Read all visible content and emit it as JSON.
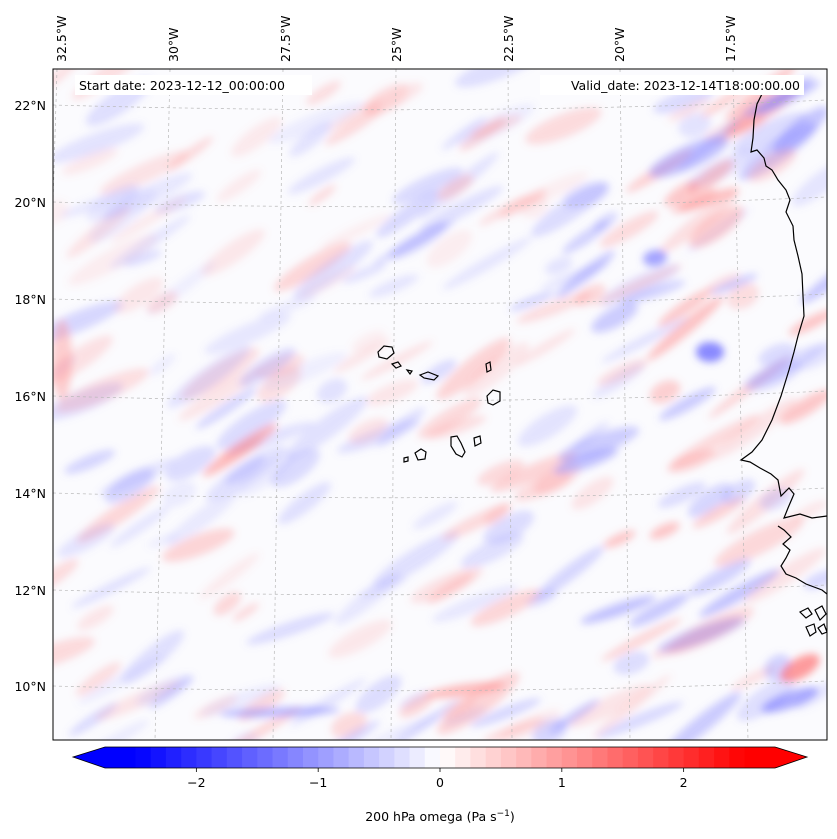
{
  "map": {
    "start_date": "Start date: 2023-12-12_00:00:00",
    "valid_date": "Valid_date: 2023-12-14T18:00:00.00",
    "lon_labels": [
      "32.5°W",
      "30°W",
      "27.5°W",
      "25°W",
      "22.5°W",
      "20°W",
      "17.5°W"
    ],
    "lat_labels": [
      "22°N",
      "20°N",
      "18°N",
      "16°N",
      "14°N",
      "12°N",
      "10°N"
    ],
    "extent": {
      "lon_min": -32.6,
      "lon_max": -15.2,
      "lat_min": 8.9,
      "lat_max": 22.7
    },
    "gridlines": true,
    "projection": "Lambert conformal"
  },
  "colorbar": {
    "label_main": "200 hPa omega (Pa s",
    "label_exp": "−1",
    "label_close": ")",
    "tick_labels": [
      "−2",
      "−1",
      "0",
      "1",
      "2"
    ],
    "tick_values": [
      -2,
      -1,
      0,
      1,
      2
    ],
    "range": [
      -2.75,
      2.75
    ],
    "colormap": "bwr",
    "extend": "both",
    "colors": {
      "negative": "#0000ff",
      "zero": "#ffffff",
      "positive": "#ff0000"
    }
  }
}
